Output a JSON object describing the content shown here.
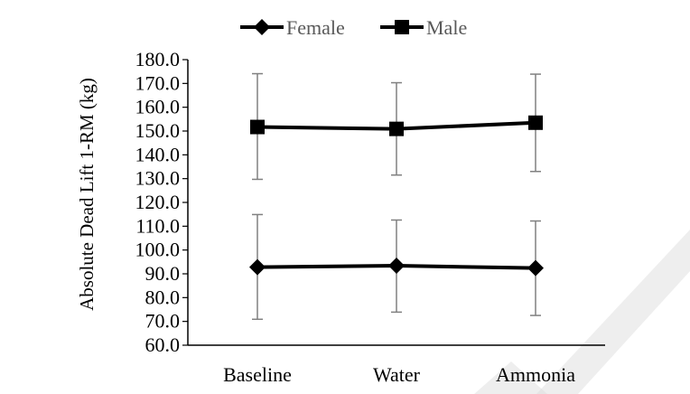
{
  "chart_data": {
    "type": "line",
    "title": "",
    "xlabel": "",
    "ylabel": "Absolute Dead Lift 1-RM (kg)",
    "categories": [
      "Baseline",
      "Water",
      "Ammonia"
    ],
    "ylim": [
      60.0,
      180.0
    ],
    "ytick_step": 10,
    "yticks": [
      "60.0",
      "70.0",
      "80.0",
      "90.0",
      "100.0",
      "110.0",
      "120.0",
      "130.0",
      "140.0",
      "150.0",
      "160.0",
      "170.0",
      "180.0"
    ],
    "grid": false,
    "legend_position": "top-center",
    "series": [
      {
        "name": "Female",
        "marker": "diamond",
        "color": "#000000",
        "values": [
          92.8,
          93.4,
          92.4
        ],
        "error_low": [
          70.9,
          73.9,
          72.5
        ],
        "error_high": [
          114.9,
          112.6,
          112.2
        ]
      },
      {
        "name": "Male",
        "marker": "square",
        "color": "#000000",
        "values": [
          151.7,
          150.9,
          153.5
        ],
        "error_low": [
          129.7,
          131.5,
          133.0
        ],
        "error_high": [
          174.1,
          170.3,
          173.9
        ]
      }
    ],
    "error_bar_color": "#808080"
  }
}
